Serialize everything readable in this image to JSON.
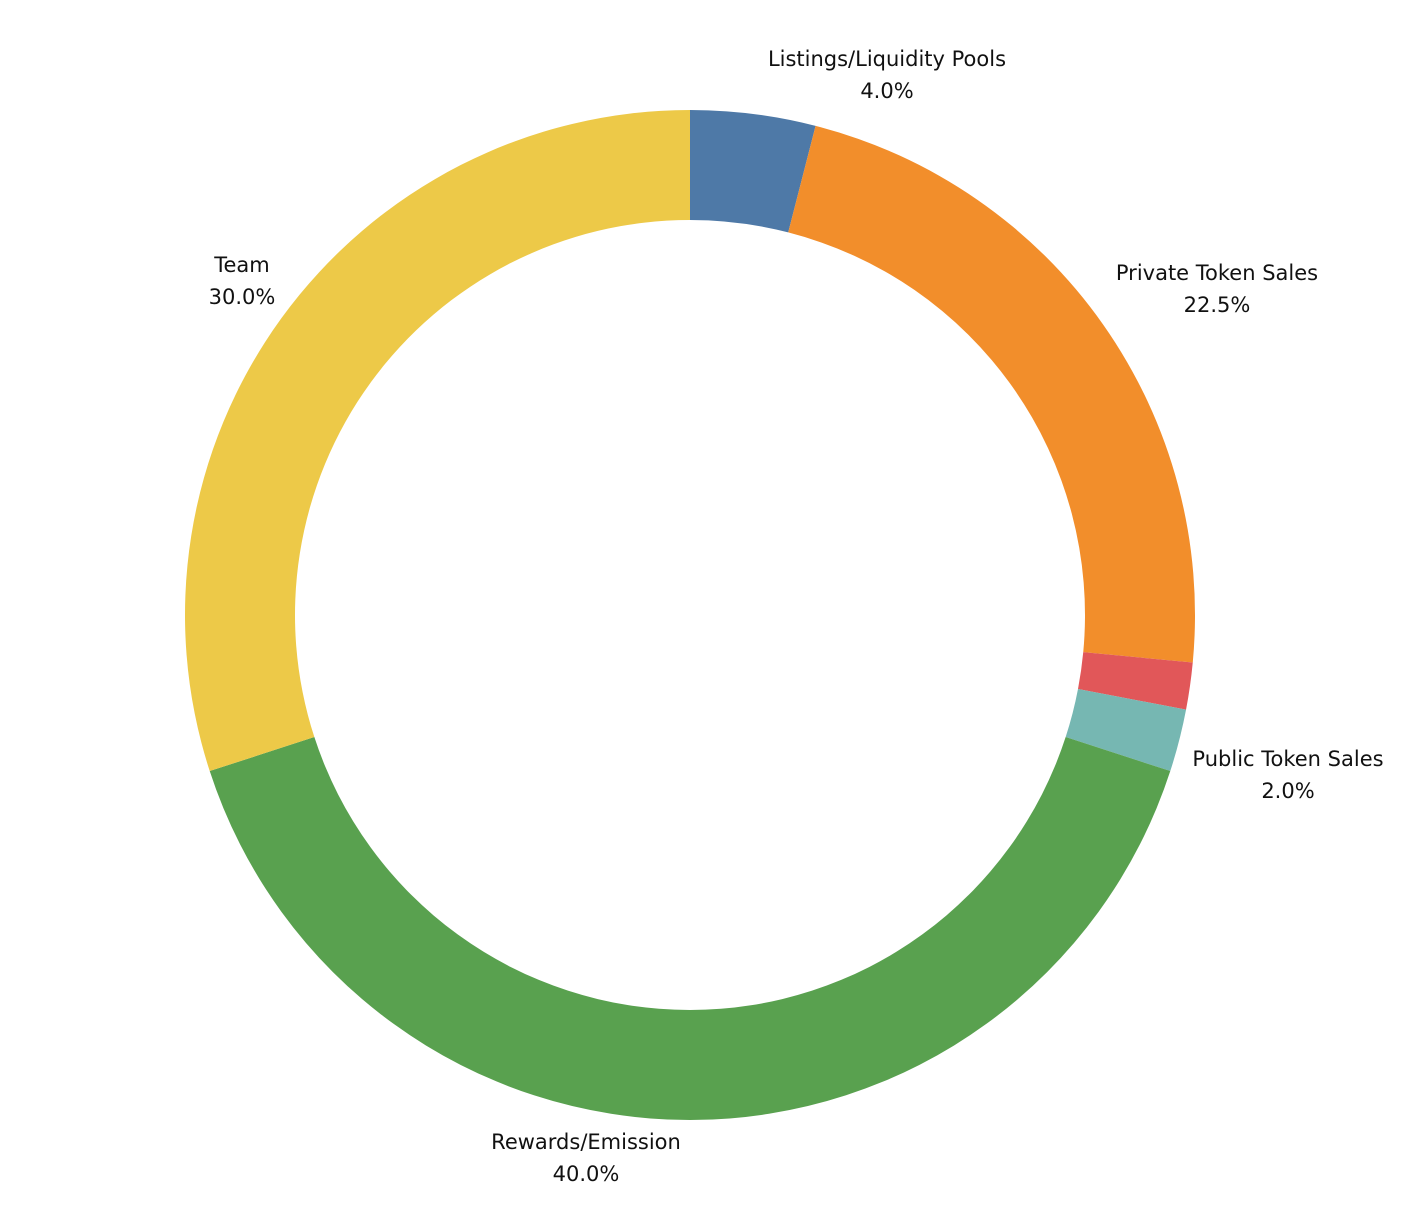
{
  "chart_data": {
    "type": "donut",
    "categories": [
      "Listings/Liquidity Pools",
      "Private Token Sales",
      null,
      "Public Token Sales",
      "Rewards/Emission",
      "Team"
    ],
    "values": [
      4.0,
      22.5,
      1.5,
      2.0,
      40.0,
      30.0
    ],
    "value_labels": [
      "4.0%",
      "22.5%",
      null,
      "2.0%",
      "40.0%",
      "30.0%"
    ],
    "colors": [
      "#4e79a7",
      "#f28e2b",
      "#e15759",
      "#76b7b2",
      "#59a14f",
      "#edc948"
    ]
  }
}
